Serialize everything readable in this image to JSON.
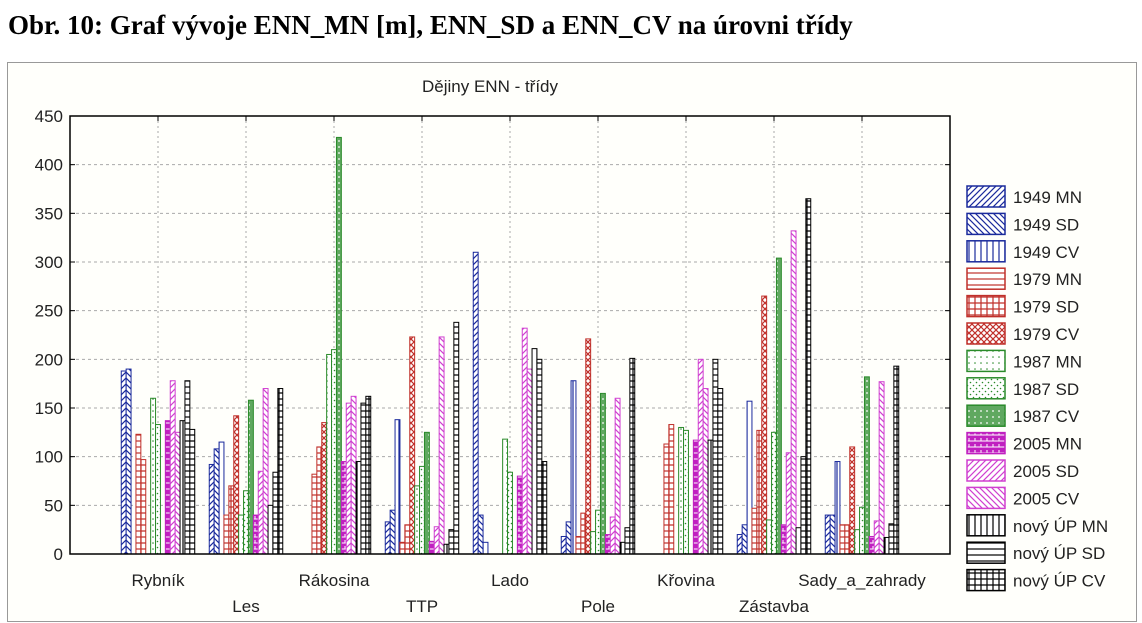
{
  "document_title": "Obr. 10: Graf vývoje ENN_MN [m], ENN_SD a ENN_CV na úrovni třídy",
  "chart_data": {
    "type": "bar",
    "title": "Dějiny ENN - třídy",
    "xlabel": "",
    "ylabel": "",
    "ylim": [
      0,
      450
    ],
    "yticks": [
      0,
      50,
      100,
      150,
      200,
      250,
      300,
      350,
      400,
      450
    ],
    "grid": true,
    "legend_position": "right",
    "categories": [
      "Rybník",
      "Les",
      "Rákosina",
      "TTP",
      "Lado",
      "Pole",
      "Křovina",
      "Zástavba",
      "Sady_a_zahrady"
    ],
    "series": [
      {
        "name": "1949 MN",
        "color": "#1a2a9c",
        "pattern": "diag-right",
        "values": [
          188,
          92,
          0,
          33,
          310,
          18,
          0,
          20,
          40
        ]
      },
      {
        "name": "1949 SD",
        "color": "#1a2a9c",
        "pattern": "diag-left",
        "values": [
          190,
          108,
          0,
          45,
          40,
          33,
          0,
          30,
          40
        ]
      },
      {
        "name": "1949 CV",
        "color": "#1a2a9c",
        "pattern": "vertical",
        "values": [
          0,
          115,
          0,
          138,
          12,
          178,
          0,
          157,
          95
        ]
      },
      {
        "name": "1979 MN",
        "color": "#c0302a",
        "pattern": "horizontal",
        "values": [
          123,
          40,
          82,
          12,
          0,
          18,
          113,
          47,
          30
        ]
      },
      {
        "name": "1979 SD",
        "color": "#c0302a",
        "pattern": "grid",
        "values": [
          97,
          70,
          110,
          30,
          0,
          42,
          133,
          127,
          30
        ]
      },
      {
        "name": "1979 CV",
        "color": "#c0302a",
        "pattern": "crosshatch",
        "values": [
          0,
          142,
          135,
          223,
          0,
          221,
          0,
          265,
          110
        ]
      },
      {
        "name": "1987 MN",
        "color": "#2a8a2a",
        "pattern": "dots-sparse",
        "values": [
          160,
          40,
          205,
          70,
          118,
          23,
          130,
          35,
          25
        ]
      },
      {
        "name": "1987 SD",
        "color": "#2a8a2a",
        "pattern": "dots",
        "values": [
          133,
          65,
          210,
          90,
          84,
          45,
          127,
          125,
          48
        ]
      },
      {
        "name": "1987 CV",
        "color": "#2a8a2a",
        "pattern": "dense",
        "values": [
          0,
          158,
          428,
          125,
          0,
          165,
          0,
          304,
          182
        ]
      },
      {
        "name": "2005 MN",
        "color": "#c020c0",
        "pattern": "brick",
        "values": [
          137,
          40,
          95,
          13,
          80,
          20,
          117,
          30,
          18
        ]
      },
      {
        "name": "2005 SD",
        "color": "#d040d0",
        "pattern": "diag-right",
        "values": [
          178,
          85,
          155,
          28,
          232,
          38,
          200,
          104,
          34
        ]
      },
      {
        "name": "2005 CV",
        "color": "#d040d0",
        "pattern": "diag-left",
        "values": [
          125,
          170,
          162,
          223,
          190,
          160,
          170,
          332,
          177
        ]
      },
      {
        "name": "nový ÚP MN",
        "color": "#000000",
        "pattern": "vertical",
        "values": [
          137,
          50,
          95,
          10,
          211,
          12,
          117,
          27,
          17
        ]
      },
      {
        "name": "nový ÚP SD",
        "color": "#000000",
        "pattern": "horizontal",
        "values": [
          178,
          84,
          155,
          25,
          200,
          27,
          200,
          100,
          31
        ]
      },
      {
        "name": "nový ÚP CV",
        "color": "#000000",
        "pattern": "grid",
        "values": [
          128,
          170,
          162,
          238,
          95,
          201,
          170,
          365,
          193
        ]
      }
    ]
  }
}
